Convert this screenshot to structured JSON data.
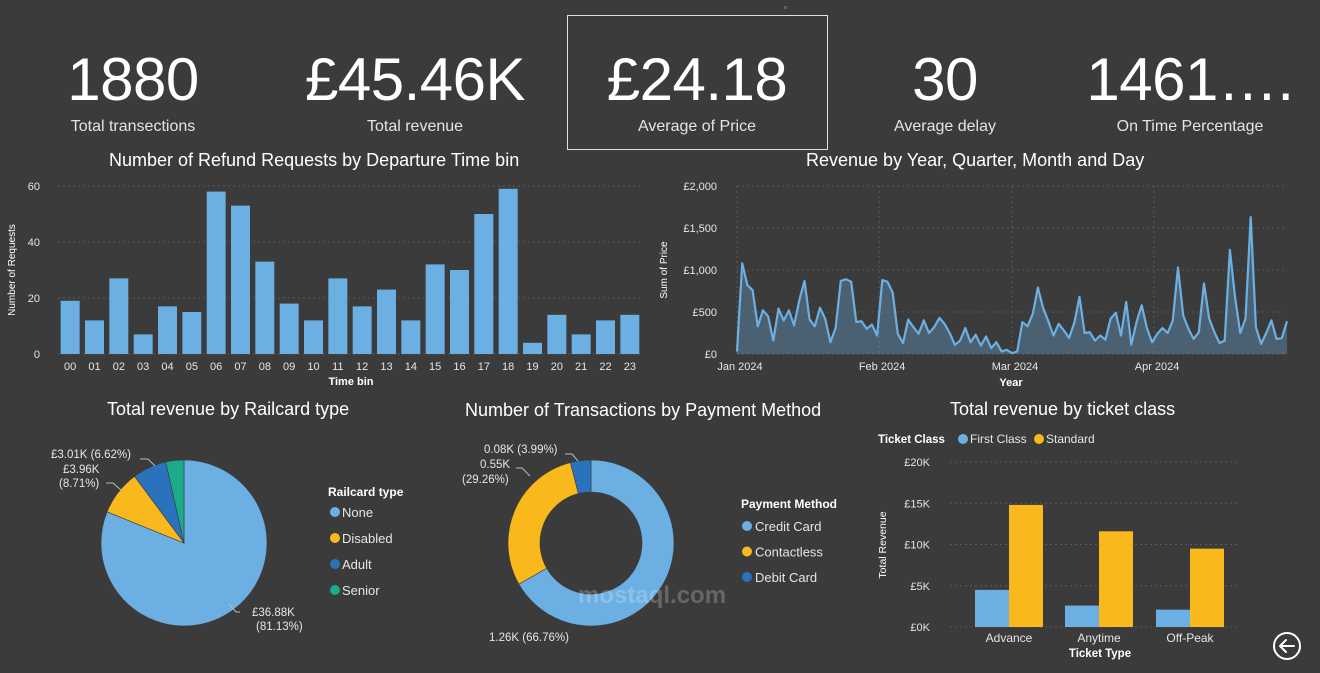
{
  "kpis": [
    {
      "value": "1880",
      "label": "Total transections"
    },
    {
      "value": "£45.46K",
      "label": "Total revenue"
    },
    {
      "value": "£24.18",
      "label": "Average of Price"
    },
    {
      "value": "30",
      "label": "Average delay"
    },
    {
      "value": "1461….",
      "label": "On Time Percentage"
    }
  ],
  "watermark": "mostaql.com",
  "chart_data": [
    {
      "id": "refunds",
      "type": "bar",
      "title": "Number of Refund Requests by Departure Time bin",
      "xlabel": "Time bin",
      "ylabel": "Number of Requests",
      "ylim": [
        0,
        60
      ],
      "yticks": [
        0,
        20,
        40,
        60
      ],
      "categories": [
        "00",
        "01",
        "02",
        "03",
        "04",
        "05",
        "06",
        "07",
        "08",
        "09",
        "10",
        "11",
        "12",
        "13",
        "14",
        "15",
        "16",
        "17",
        "18",
        "19",
        "20",
        "21",
        "22",
        "23"
      ],
      "values": [
        19,
        12,
        27,
        7,
        17,
        15,
        58,
        53,
        33,
        18,
        12,
        27,
        17,
        23,
        12,
        32,
        30,
        50,
        59,
        4,
        14,
        7,
        12,
        14
      ],
      "color": "#6cb0e3"
    },
    {
      "id": "revenue",
      "type": "area",
      "title": "Revenue by Year, Quarter, Month and Day",
      "xlabel": "Year",
      "ylabel": "Sum of Price",
      "ylim": [
        0,
        2000
      ],
      "yticks": [
        "£0",
        "£500",
        "£1,000",
        "£1,500",
        "£2,000"
      ],
      "xticks": [
        "Jan 2024",
        "Feb 2024",
        "Mar 2024",
        "Apr 2024"
      ],
      "x_start": "2024-01-01",
      "x_end": "2024-04-30",
      "values": [
        30,
        1080,
        820,
        760,
        330,
        520,
        450,
        160,
        540,
        400,
        520,
        340,
        640,
        870,
        410,
        330,
        550,
        420,
        140,
        310,
        870,
        890,
        860,
        380,
        390,
        300,
        350,
        220,
        880,
        860,
        730,
        240,
        130,
        410,
        320,
        240,
        400,
        250,
        320,
        430,
        360,
        250,
        110,
        160,
        310,
        140,
        230,
        100,
        210,
        70,
        140,
        30,
        50,
        10,
        30,
        380,
        330,
        480,
        790,
        550,
        390,
        220,
        360,
        280,
        190,
        370,
        680,
        250,
        260,
        160,
        220,
        170,
        420,
        490,
        220,
        620,
        110,
        380,
        580,
        310,
        140,
        240,
        310,
        250,
        400,
        1030,
        460,
        300,
        180,
        260,
        840,
        420,
        260,
        130,
        160,
        1240,
        670,
        250,
        420,
        1630,
        320,
        120,
        250,
        400,
        180,
        190,
        390
      ],
      "color": "#6cb0e3"
    },
    {
      "id": "railcard",
      "type": "pie",
      "title": "Total revenue by Railcard type",
      "legend_title": "Railcard type",
      "slices": [
        {
          "name": "None",
          "value": 36.88,
          "label": "£36.88K",
          "pct": "(81.13%)",
          "color": "#6cb0e3"
        },
        {
          "name": "Disabled",
          "value": 3.96,
          "label": "£3.96K",
          "pct": "(8.71%)",
          "color": "#f9b81c"
        },
        {
          "name": "Adult",
          "value": 3.01,
          "label": "£3.01K (6.62%)",
          "pct": "",
          "color": "#2a72bb"
        },
        {
          "name": "Senior",
          "value": 1.61,
          "label": "",
          "pct": "",
          "color": "#1aab8a"
        }
      ]
    },
    {
      "id": "payment",
      "type": "pie",
      "title": "Number of Transactions by Payment Method",
      "legend_title": "Payment Method",
      "slices": [
        {
          "name": "Credit Card",
          "value": 66.76,
          "label": "1.26K (66.76%)",
          "color": "#6cb0e3"
        },
        {
          "name": "Contactless",
          "value": 29.26,
          "label": "0.55K",
          "pct": "(29.26%)",
          "color": "#f9b81c"
        },
        {
          "name": "Debit Card",
          "value": 3.99,
          "label": "0.08K (3.99%)",
          "color": "#2a72bb"
        }
      ]
    },
    {
      "id": "ticketclass",
      "type": "bar",
      "title": "Total revenue by ticket class",
      "legend_title": "Ticket Class",
      "xlabel": "Ticket Type",
      "ylabel": "Total Revenue",
      "ylim": [
        0,
        20
      ],
      "yticks": [
        "£0K",
        "£5K",
        "£10K",
        "£15K",
        "£20K"
      ],
      "categories": [
        "Advance",
        "Anytime",
        "Off-Peak"
      ],
      "series": [
        {
          "name": "First Class",
          "values": [
            4.5,
            2.6,
            2.1
          ],
          "color": "#6cb0e3"
        },
        {
          "name": "Standard",
          "values": [
            14.8,
            11.6,
            9.5
          ],
          "color": "#f9b81c"
        }
      ]
    }
  ]
}
